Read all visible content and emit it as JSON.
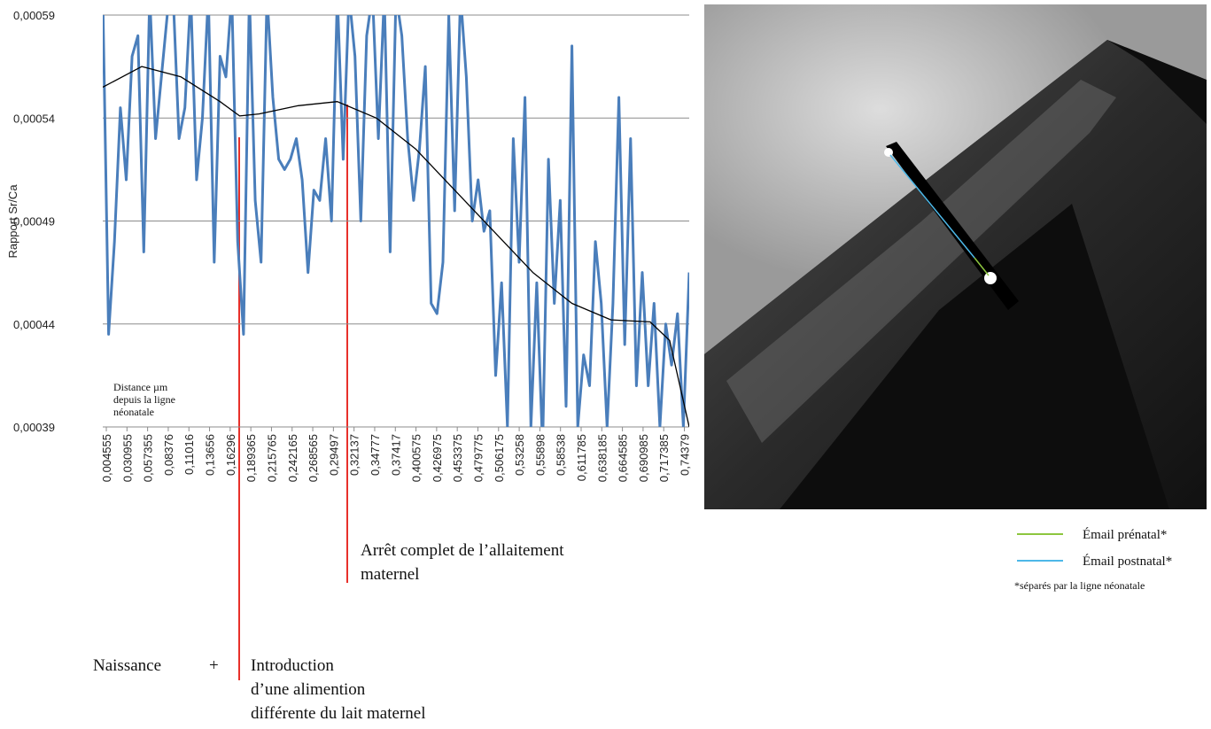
{
  "chart_data": {
    "type": "line",
    "y_label": "Rapport Sr/Ca",
    "x_note": [
      "Distance µm",
      "depuis la ligne",
      "néonatale"
    ],
    "xlim": [
      0,
      0.75
    ],
    "ylim": [
      0.00039,
      0.00059
    ],
    "yticks": [
      {
        "value": 0.00039,
        "label": "0,00039"
      },
      {
        "value": 0.00044,
        "label": "0,00044"
      },
      {
        "value": 0.00049,
        "label": "0,00049"
      },
      {
        "value": 0.00054,
        "label": "0,00054"
      },
      {
        "value": 0.00059,
        "label": "0,00059"
      }
    ],
    "xticks": [
      {
        "value": 0.004555,
        "label": "0,004555"
      },
      {
        "value": 0.030955,
        "label": "0,030955"
      },
      {
        "value": 0.057355,
        "label": "0,057355"
      },
      {
        "value": 0.08376,
        "label": "0,08376"
      },
      {
        "value": 0.11016,
        "label": "0,11016"
      },
      {
        "value": 0.13656,
        "label": "0,13656"
      },
      {
        "value": 0.16296,
        "label": "0,16296"
      },
      {
        "value": 0.189365,
        "label": "0,189365"
      },
      {
        "value": 0.215765,
        "label": "0,215765"
      },
      {
        "value": 0.242165,
        "label": "0,242165"
      },
      {
        "value": 0.268565,
        "label": "0,268565"
      },
      {
        "value": 0.29497,
        "label": "0,29497"
      },
      {
        "value": 0.32137,
        "label": "0,32137"
      },
      {
        "value": 0.34777,
        "label": "0,34777"
      },
      {
        "value": 0.37417,
        "label": "0,37417"
      },
      {
        "value": 0.400575,
        "label": "0,400575"
      },
      {
        "value": 0.426975,
        "label": "0,426975"
      },
      {
        "value": 0.453375,
        "label": "0,453375"
      },
      {
        "value": 0.479775,
        "label": "0,479775"
      },
      {
        "value": 0.506175,
        "label": "0,506175"
      },
      {
        "value": 0.53258,
        "label": "0,53258"
      },
      {
        "value": 0.55898,
        "label": "0,55898"
      },
      {
        "value": 0.58538,
        "label": "0,58538"
      },
      {
        "value": 0.611785,
        "label": "0,611785"
      },
      {
        "value": 0.638185,
        "label": "0,638185"
      },
      {
        "value": 0.664585,
        "label": "0,664585"
      },
      {
        "value": 0.690985,
        "label": "0,690985"
      },
      {
        "value": 0.717385,
        "label": "0,717385"
      },
      {
        "value": 0.74379,
        "label": "0,74379"
      }
    ],
    "grid": true,
    "series": [
      {
        "color": "#4a7ebb",
        "x": [
          0,
          0.0075,
          0.015,
          0.0225,
          0.03,
          0.0375,
          0.045,
          0.0525,
          0.06,
          0.0675,
          0.075,
          0.0825,
          0.09,
          0.0975,
          0.105,
          0.1125,
          0.12,
          0.1275,
          0.135,
          0.1425,
          0.15,
          0.1575,
          0.165,
          0.1725,
          0.18,
          0.1875,
          0.195,
          0.2025,
          0.21,
          0.2175,
          0.225,
          0.2325,
          0.24,
          0.2475,
          0.255,
          0.2625,
          0.27,
          0.2775,
          0.285,
          0.2925,
          0.3,
          0.3075,
          0.315,
          0.3225,
          0.33,
          0.3375,
          0.345,
          0.3525,
          0.36,
          0.3675,
          0.375,
          0.3825,
          0.39,
          0.3975,
          0.405,
          0.4125,
          0.42,
          0.4275,
          0.435,
          0.4425,
          0.45,
          0.4575,
          0.465,
          0.4725,
          0.48,
          0.4875,
          0.495,
          0.5025,
          0.51,
          0.5175,
          0.525,
          0.5325,
          0.54,
          0.5475,
          0.555,
          0.5625,
          0.57,
          0.5775,
          0.585,
          0.5925,
          0.6,
          0.6075,
          0.615,
          0.6225,
          0.63,
          0.6375,
          0.645,
          0.6525,
          0.66,
          0.6675,
          0.675,
          0.6825,
          0.69,
          0.6975,
          0.705,
          0.7125,
          0.72,
          0.7275,
          0.735,
          0.7425,
          0.75
        ],
        "values": [
          0.0006,
          0.000435,
          0.00048,
          0.000545,
          0.00051,
          0.00057,
          0.00058,
          0.000475,
          0.0006,
          0.00053,
          0.00056,
          0.00059,
          0.0006,
          0.00053,
          0.000545,
          0.0006,
          0.00051,
          0.00054,
          0.0006,
          0.00047,
          0.00057,
          0.00056,
          0.0006,
          0.00048,
          0.000435,
          0.0006,
          0.0005,
          0.00047,
          0.0006,
          0.00055,
          0.00052,
          0.000515,
          0.00052,
          0.00053,
          0.00051,
          0.000465,
          0.000505,
          0.0005,
          0.00053,
          0.00049,
          0.0006,
          0.00052,
          0.0006,
          0.00057,
          0.00049,
          0.00058,
          0.0006,
          0.00053,
          0.0006,
          0.000475,
          0.0006,
          0.00058,
          0.00053,
          0.0005,
          0.000525,
          0.000565,
          0.00045,
          0.000445,
          0.00047,
          0.00059,
          0.000495,
          0.0006,
          0.00056,
          0.00049,
          0.00051,
          0.000485,
          0.000495,
          0.000415,
          0.00046,
          0.00039,
          0.00053,
          0.00047,
          0.00055,
          0.00039,
          0.00046,
          0.00038,
          0.00052,
          0.00045,
          0.0005,
          0.0004,
          0.000575,
          0.00039,
          0.000425,
          0.00041,
          0.00048,
          0.00045,
          0.00039,
          0.00045,
          0.00055,
          0.00043,
          0.00053,
          0.00041,
          0.000465,
          0.00041,
          0.00045,
          0.00039,
          0.00044,
          0.00042,
          0.000445,
          0.00039,
          0.000465
        ]
      },
      {
        "color": "#000000",
        "x": [
          0,
          0.05,
          0.1,
          0.15,
          0.175,
          0.2,
          0.25,
          0.3,
          0.35,
          0.4,
          0.45,
          0.5,
          0.55,
          0.6,
          0.65,
          0.7,
          0.725,
          0.75
        ],
        "values": [
          0.000555,
          0.000565,
          0.00056,
          0.000548,
          0.000541,
          0.000542,
          0.000546,
          0.000548,
          0.00054,
          0.000525,
          0.000505,
          0.000485,
          0.000465,
          0.00045,
          0.000442,
          0.000441,
          0.000432,
          0.00039
        ]
      }
    ],
    "annotations": [
      {
        "lines": [
          "Arrêt complet de l’allaitement",
          "maternel"
        ]
      },
      {
        "lines": [
          "Naissance"
        ]
      },
      {
        "lines": [
          "+"
        ]
      },
      {
        "lines": [
          "Introduction",
          "d’une alimention",
          "différente du lait maternel"
        ]
      }
    ]
  },
  "legend": {
    "items": [
      {
        "label": "Émail prénatal*",
        "color": "#8dc63f"
      },
      {
        "label": "Émail postnatal*",
        "color": "#4db8e8"
      }
    ],
    "note": "*séparés par la ligne néonatale"
  }
}
